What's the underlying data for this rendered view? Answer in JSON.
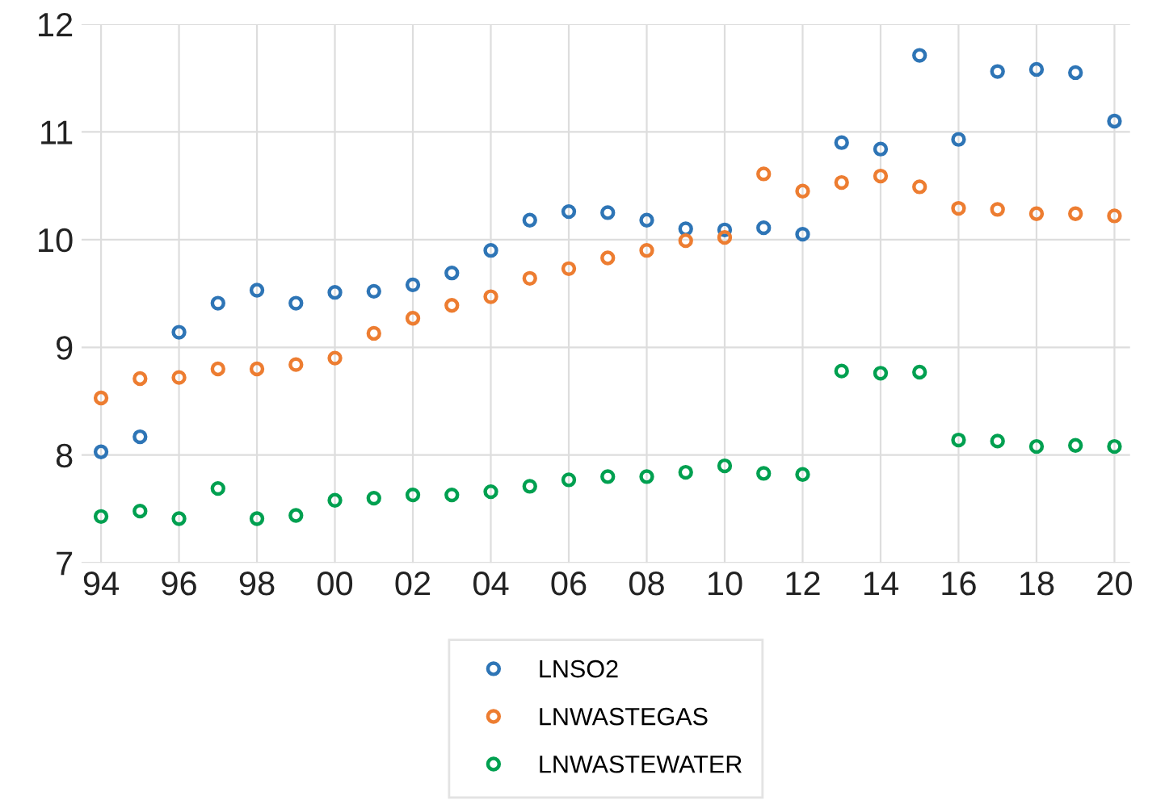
{
  "chart_data": {
    "type": "scatter",
    "x": [
      1994,
      1995,
      1996,
      1997,
      1998,
      1999,
      2000,
      2001,
      2002,
      2003,
      2004,
      2005,
      2006,
      2007,
      2008,
      2009,
      2010,
      2011,
      2012,
      2013,
      2014,
      2015,
      2016,
      2017,
      2018,
      2019,
      2020
    ],
    "series": [
      {
        "name": "LNSO2",
        "color": "#2e75b6",
        "values": [
          8.03,
          8.17,
          9.14,
          9.41,
          9.53,
          9.41,
          9.51,
          9.52,
          9.58,
          9.69,
          9.9,
          10.18,
          10.26,
          10.25,
          10.18,
          10.1,
          10.09,
          10.11,
          10.05,
          10.9,
          10.84,
          11.71,
          10.93,
          11.56,
          11.58,
          11.55,
          11.1
        ]
      },
      {
        "name": "LNWASTEGAS",
        "color": "#ed7d31",
        "values": [
          8.53,
          8.71,
          8.72,
          8.8,
          8.8,
          8.84,
          8.9,
          9.13,
          9.27,
          9.39,
          9.47,
          9.64,
          9.73,
          9.83,
          9.9,
          9.99,
          10.02,
          10.61,
          10.45,
          10.53,
          10.59,
          10.49,
          10.29,
          10.28,
          10.24,
          10.24,
          10.22
        ]
      },
      {
        "name": "LNWASTEWATER",
        "color": "#00a050",
        "values": [
          7.43,
          7.48,
          7.41,
          7.69,
          7.41,
          7.44,
          7.58,
          7.6,
          7.63,
          7.63,
          7.66,
          7.71,
          7.77,
          7.8,
          7.8,
          7.84,
          7.9,
          7.83,
          7.82,
          8.78,
          8.76,
          8.77,
          8.14,
          8.13,
          8.08,
          8.09,
          8.08
        ]
      }
    ],
    "xlim": [
      1993.5,
      2020.4
    ],
    "ylim": [
      7,
      12
    ],
    "xticks": [
      {
        "value": 1994,
        "label": "94"
      },
      {
        "value": 1996,
        "label": "96"
      },
      {
        "value": 1998,
        "label": "98"
      },
      {
        "value": 2000,
        "label": "00"
      },
      {
        "value": 2002,
        "label": "02"
      },
      {
        "value": 2004,
        "label": "04"
      },
      {
        "value": 2006,
        "label": "06"
      },
      {
        "value": 2008,
        "label": "08"
      },
      {
        "value": 2010,
        "label": "10"
      },
      {
        "value": 2012,
        "label": "12"
      },
      {
        "value": 2014,
        "label": "14"
      },
      {
        "value": 2016,
        "label": "16"
      },
      {
        "value": 2018,
        "label": "18"
      },
      {
        "value": 2020,
        "label": "20"
      }
    ],
    "yticks": [
      7,
      8,
      9,
      10,
      11,
      12
    ],
    "grid": true,
    "legend": "bottom",
    "marker": "circle"
  }
}
